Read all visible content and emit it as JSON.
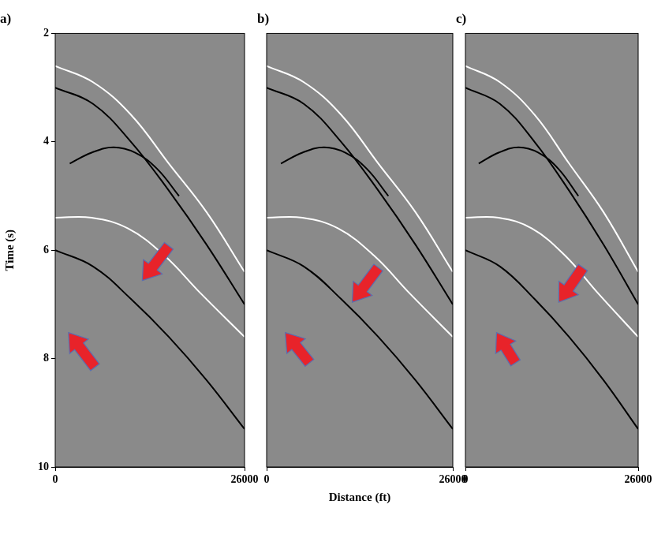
{
  "chart_data": [
    {
      "type": "line",
      "title": "a)",
      "y_label": "Time (s)",
      "xlim": [
        0,
        26000
      ],
      "xticks": [
        0,
        26000
      ],
      "ylim": [
        2,
        10
      ],
      "yticks": [
        2,
        4,
        6,
        8,
        10
      ],
      "grid": false,
      "tick_labels": true,
      "series": [
        {
          "color": "#ffffff",
          "x": [
            0,
            5200,
            10400,
            15600,
            20800,
            26000
          ],
          "values": [
            2.6,
            2.9,
            3.5,
            4.4,
            5.3,
            6.4
          ]
        },
        {
          "color": "#000000",
          "x": [
            0,
            5200,
            10400,
            15600,
            20800,
            26000
          ],
          "values": [
            3.0,
            3.3,
            4.0,
            4.9,
            5.9,
            7.0
          ]
        },
        {
          "color": "#000000",
          "x": [
            2000,
            5000,
            8000,
            11000,
            14000,
            17000
          ],
          "values": [
            4.4,
            4.2,
            4.1,
            4.2,
            4.5,
            5.0
          ]
        },
        {
          "color": "#ffffff",
          "x": [
            0,
            5000,
            10000,
            15000,
            20000,
            26000
          ],
          "values": [
            5.4,
            5.4,
            5.6,
            6.1,
            6.8,
            7.6
          ]
        },
        {
          "color": "#000000",
          "x": [
            0,
            5200,
            10400,
            15600,
            20800,
            26000
          ],
          "values": [
            6.0,
            6.3,
            6.9,
            7.6,
            8.4,
            9.3
          ]
        }
      ]
    },
    {
      "type": "line",
      "title": "b)",
      "x_label": "Distance (ft)",
      "xlim": [
        0,
        26000
      ],
      "xticks": [
        0,
        26000
      ],
      "ylim": [
        2,
        10
      ],
      "grid": false,
      "tick_labels": "x",
      "series": [
        {
          "color": "#ffffff",
          "x": [
            0,
            5200,
            10400,
            15600,
            20800,
            26000
          ],
          "values": [
            2.6,
            2.9,
            3.5,
            4.4,
            5.3,
            6.4
          ]
        },
        {
          "color": "#000000",
          "x": [
            0,
            5200,
            10400,
            15600,
            20800,
            26000
          ],
          "values": [
            3.0,
            3.3,
            4.0,
            4.9,
            5.9,
            7.0
          ]
        },
        {
          "color": "#000000",
          "x": [
            2000,
            5000,
            8000,
            11000,
            14000,
            17000
          ],
          "values": [
            4.4,
            4.2,
            4.1,
            4.2,
            4.5,
            5.0
          ]
        },
        {
          "color": "#ffffff",
          "x": [
            0,
            5000,
            10000,
            15000,
            20000,
            26000
          ],
          "values": [
            5.4,
            5.4,
            5.6,
            6.1,
            6.8,
            7.6
          ]
        },
        {
          "color": "#000000",
          "x": [
            0,
            5200,
            10400,
            15600,
            20800,
            26000
          ],
          "values": [
            6.0,
            6.3,
            6.9,
            7.6,
            8.4,
            9.3
          ]
        }
      ]
    },
    {
      "type": "line",
      "title": "c)",
      "xlim": [
        0,
        26000
      ],
      "xticks": [
        0,
        26000
      ],
      "ylim": [
        2,
        10
      ],
      "grid": false,
      "tick_labels": "x",
      "series": [
        {
          "color": "#ffffff",
          "x": [
            0,
            5200,
            10400,
            15600,
            20800,
            26000
          ],
          "values": [
            2.6,
            2.9,
            3.5,
            4.4,
            5.3,
            6.4
          ]
        },
        {
          "color": "#000000",
          "x": [
            0,
            5200,
            10400,
            15600,
            20800,
            26000
          ],
          "values": [
            3.0,
            3.3,
            4.0,
            4.9,
            5.9,
            7.0
          ]
        },
        {
          "color": "#000000",
          "x": [
            2000,
            5000,
            8000,
            11000,
            14000,
            17000
          ],
          "values": [
            4.4,
            4.2,
            4.1,
            4.2,
            4.5,
            5.0
          ]
        },
        {
          "color": "#ffffff",
          "x": [
            0,
            5000,
            10000,
            15000,
            20000,
            26000
          ],
          "values": [
            5.4,
            5.4,
            5.6,
            6.1,
            6.8,
            7.6
          ]
        },
        {
          "color": "#000000",
          "x": [
            0,
            5200,
            10400,
            15600,
            20800,
            26000
          ],
          "values": [
            6.0,
            6.3,
            6.9,
            7.6,
            8.4,
            9.3
          ]
        }
      ]
    }
  ]
}
